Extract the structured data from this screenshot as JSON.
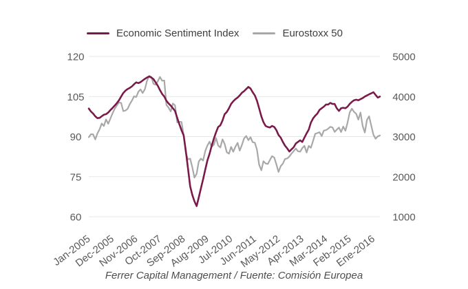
{
  "legend": {
    "items": [
      {
        "label": "Economic Sentiment Index",
        "color": "#7a1a4b"
      },
      {
        "label": "Eurostoxx 50",
        "color": "#a8a8a8"
      }
    ]
  },
  "footer": {
    "source_caption": "Ferrer Capital Management / Fuente: Comisión Europea"
  },
  "chart_data": {
    "type": "line",
    "title": "",
    "grid": "horizontal-only",
    "legend_position": "top-center",
    "background": "#ffffff",
    "gridline_color": "#e7e7e7",
    "axis_label_color": "#595959",
    "x_ticks": [
      {
        "label": "Jan-2005",
        "month": 0
      },
      {
        "label": "Dec-2005",
        "month": 11
      },
      {
        "label": "Nov-2006",
        "month": 22
      },
      {
        "label": "Oct-2007",
        "month": 33
      },
      {
        "label": "Sep-2008",
        "month": 44
      },
      {
        "label": "Aug-2009",
        "month": 55
      },
      {
        "label": "Jul-2010",
        "month": 66
      },
      {
        "label": "Jun-2011",
        "month": 77
      },
      {
        "label": "May-2012",
        "month": 88
      },
      {
        "label": "Apr-2013",
        "month": 99
      },
      {
        "label": "Mar-2014",
        "month": 110
      },
      {
        "label": "Feb-2015",
        "month": 121
      },
      {
        "label": "Ene-2016",
        "month": 132
      }
    ],
    "left_axis": {
      "series": "Economic Sentiment Index",
      "range": [
        60,
        120
      ],
      "ticks": [
        60,
        75,
        90,
        105,
        120
      ]
    },
    "right_axis": {
      "series": "Eurostoxx 50",
      "range": [
        1000,
        5000
      ],
      "ticks": [
        1000,
        2000,
        3000,
        4000,
        5000
      ]
    },
    "x_frequency": "monthly",
    "x_range": [
      "Jan-2005",
      "Apr-2016"
    ],
    "series": [
      {
        "name": "Economic Sentiment Index",
        "axis": "left",
        "color": "#7a1a4b",
        "stroke_width": 2.6,
        "values": [
          100.5,
          99.4,
          98.6,
          97.6,
          96.9,
          97.0,
          97.6,
          98.2,
          98.4,
          99.0,
          99.9,
          100.7,
          101.6,
          102.5,
          103.6,
          105.0,
          106.3,
          107.2,
          107.8,
          108.2,
          108.8,
          109.6,
          110.3,
          110.0,
          110.4,
          111.0,
          111.6,
          112.1,
          112.5,
          112.1,
          111.5,
          110.3,
          109.0,
          107.4,
          106.0,
          105.0,
          103.4,
          102.4,
          101.6,
          100.6,
          99.6,
          97.0,
          94.6,
          92.4,
          90.4,
          84.6,
          78.2,
          71.4,
          68.2,
          65.8,
          64.0,
          67.2,
          70.6,
          74.0,
          77.6,
          81.0,
          83.6,
          86.6,
          89.2,
          91.6,
          93.6,
          94.2,
          96.0,
          98.4,
          99.2,
          100.6,
          102.2,
          103.2,
          104.0,
          104.6,
          105.4,
          106.4,
          107.0,
          107.8,
          108.6,
          108.0,
          106.6,
          105.4,
          103.4,
          100.6,
          97.6,
          95.4,
          94.0,
          93.6,
          93.4,
          94.0,
          93.6,
          92.4,
          90.6,
          89.6,
          88.0,
          86.6,
          85.6,
          84.4,
          85.2,
          86.0,
          87.4,
          88.0,
          88.6,
          88.0,
          89.6,
          91.2,
          92.6,
          95.2,
          96.8,
          97.8,
          98.6,
          100.0,
          100.6,
          101.2,
          102.0,
          102.0,
          102.6,
          102.2,
          102.2,
          100.6,
          99.6,
          100.6,
          100.8,
          100.6,
          101.2,
          102.2,
          103.0,
          103.6,
          103.8,
          103.6,
          104.0,
          104.4,
          105.0,
          105.4,
          105.8,
          106.2,
          106.6,
          105.6,
          104.6,
          105.0
        ]
      },
      {
        "name": "Eurostoxx 50",
        "axis": "right",
        "color": "#a8a8a8",
        "stroke_width": 2.2,
        "values": [
          2985,
          3058,
          3056,
          2930,
          3077,
          3182,
          3327,
          3264,
          3429,
          3320,
          3447,
          3579,
          3691,
          3774,
          3854,
          3840,
          3637,
          3649,
          3691,
          3808,
          3899,
          4005,
          3987,
          4120,
          4178,
          4087,
          4181,
          4392,
          4512,
          4489,
          4316,
          4295,
          4382,
          4489,
          4394,
          4399,
          3792,
          3724,
          3628,
          3825,
          3778,
          3353,
          3367,
          3365,
          3038,
          2591,
          2430,
          2451,
          2236,
          1976,
          2071,
          2376,
          2451,
          2402,
          2638,
          2775,
          2873,
          2744,
          2797,
          2966,
          2777,
          2728,
          2931,
          2816,
          2610,
          2573,
          2742,
          2622,
          2748,
          2844,
          2650,
          2793,
          2954,
          3013,
          2911,
          2985,
          2861,
          2848,
          2670,
          2302,
          2159,
          2385,
          2330,
          2317,
          2417,
          2512,
          2477,
          2306,
          2118,
          2264,
          2325,
          2440,
          2454,
          2503,
          2575,
          2636,
          2703,
          2634,
          2624,
          2712,
          2770,
          2603,
          2768,
          2721,
          2893,
          3068,
          3087,
          3109,
          3014,
          3149,
          3162,
          3198,
          3244,
          3228,
          3116,
          3173,
          3226,
          3113,
          3251,
          3146,
          3351,
          3599,
          3697,
          3616,
          3570,
          3424,
          3601,
          3269,
          3101,
          3418,
          3506,
          3268,
          3045,
          2946,
          3005,
          3028
        ]
      }
    ]
  }
}
